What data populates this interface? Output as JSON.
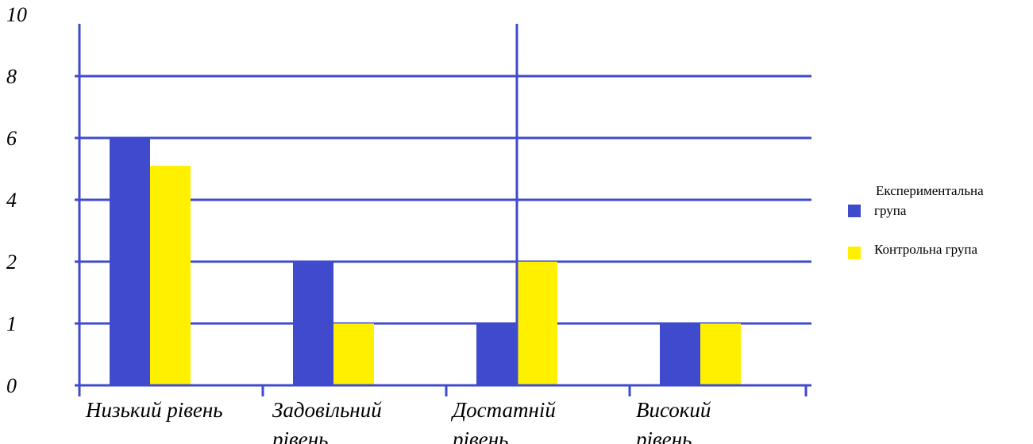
{
  "chart_data": {
    "type": "bar",
    "categories": [
      [
        "Низький рівень"
      ],
      [
        "Задовільний",
        "рівень"
      ],
      [
        "Достатній",
        "рівень"
      ],
      [
        "Високий",
        "рівень"
      ]
    ],
    "series": [
      {
        "name": "Експериментальна група",
        "name_lines": [
          "Експериментальна",
          "група"
        ],
        "values": [
          6,
          2,
          1,
          1
        ],
        "color": "#3f4bcc"
      },
      {
        "name": "Контрольна група",
        "name_lines": [
          "Контрольна група"
        ],
        "values": [
          5.1,
          1,
          2,
          1
        ],
        "color": "#fff000"
      }
    ],
    "yticks": [
      "0",
      "1",
      "2",
      "4",
      "6",
      "8",
      "10"
    ],
    "yticks_note": "tick labels are placed at equal spacing (non-linear labels as printed)",
    "gridlines_at_tick_index": [
      1,
      2,
      3,
      4,
      5
    ],
    "axis_color": "#3f4bcc",
    "legend_position": "right",
    "title": "",
    "xlabel": "",
    "ylabel": ""
  }
}
